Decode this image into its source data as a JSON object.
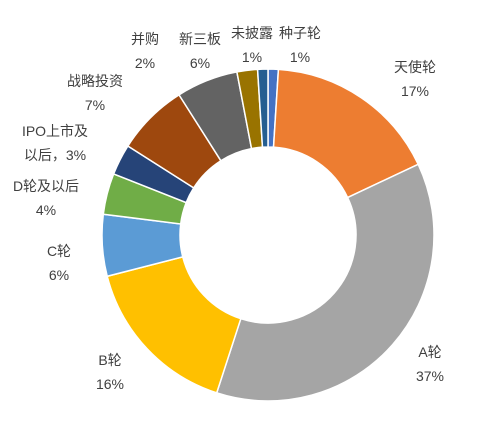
{
  "chart_data": {
    "type": "pie",
    "variant": "donut",
    "title": "",
    "slices": [
      {
        "label": "种子轮",
        "value": 1,
        "pct_label": "1%",
        "color": "#4472c4"
      },
      {
        "label": "天使轮",
        "value": 17,
        "pct_label": "17%",
        "color": "#ed7d31"
      },
      {
        "label": "A轮",
        "value": 37,
        "pct_label": "37%",
        "color": "#a5a5a5"
      },
      {
        "label": "B轮",
        "value": 16,
        "pct_label": "16%",
        "color": "#ffc000"
      },
      {
        "label": "C轮",
        "value": 6,
        "pct_label": "6%",
        "color": "#5b9bd5"
      },
      {
        "label": "D轮及以后",
        "value": 4,
        "pct_label": "4%",
        "color": "#70ad47"
      },
      {
        "label": "IPO上市及以后，3%",
        "value": 3,
        "pct_label": "",
        "color": "#264478"
      },
      {
        "label": "战略投资",
        "value": 7,
        "pct_label": "7%",
        "color": "#9e480e"
      },
      {
        "label": "新三板",
        "value": 6,
        "pct_label": "6%",
        "color": "#636363"
      },
      {
        "label": "并购",
        "value": 2,
        "pct_label": "2%",
        "color": "#997300"
      },
      {
        "label": "未披露",
        "value": 1,
        "pct_label": "1%",
        "color": "#255e91"
      }
    ],
    "legend": "none",
    "data_labels": "outside"
  }
}
